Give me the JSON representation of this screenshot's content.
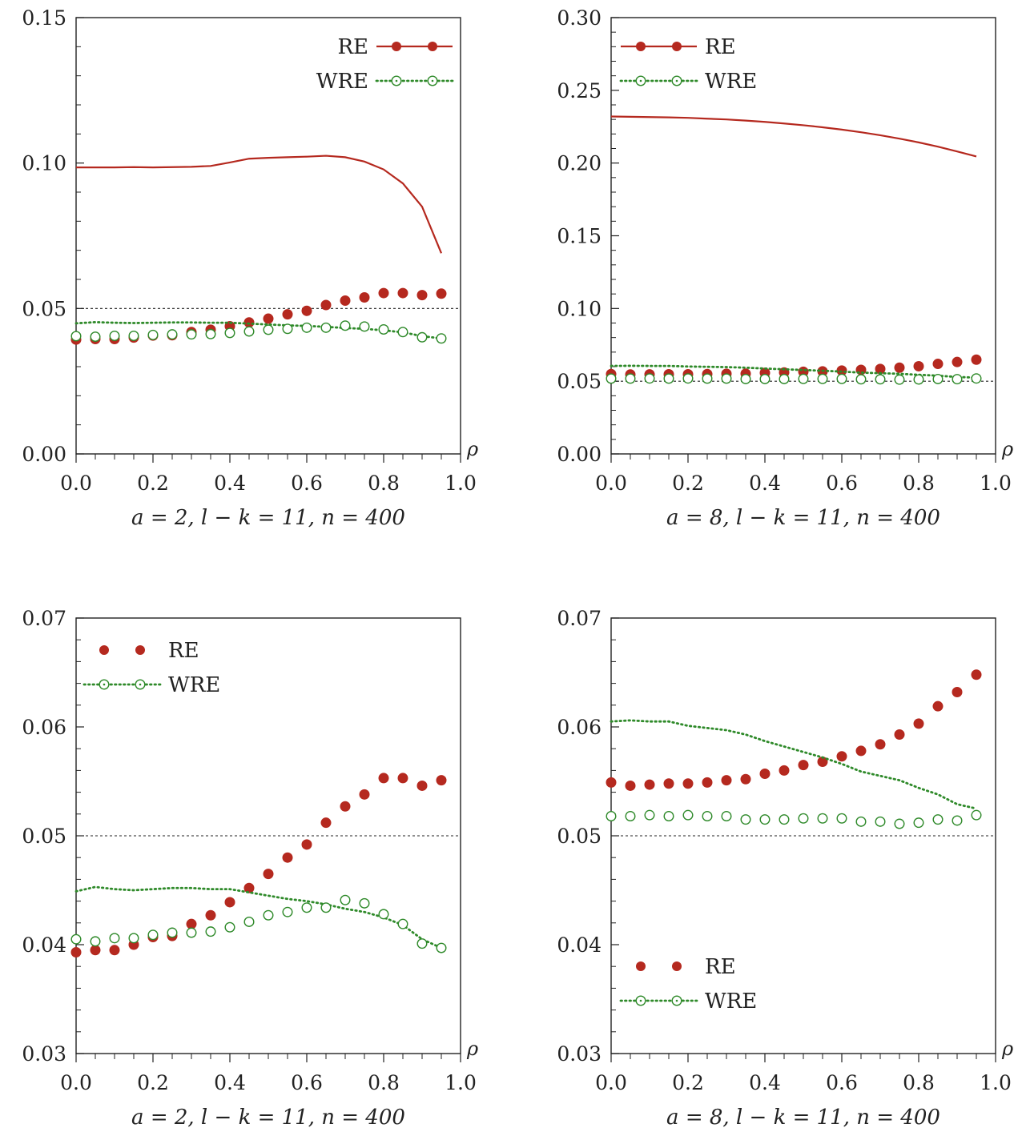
{
  "colors": {
    "re": "#b5291f",
    "wre": "#2f8a2a",
    "ref_line": "#222222",
    "axis": "#222222"
  },
  "chart_data": [
    {
      "type": "line",
      "caption": "a = 2, l − k = 11, n = 400",
      "xlabel": "ρ",
      "xlim": [
        0.0,
        1.0
      ],
      "ylim": [
        0.0,
        0.15
      ],
      "x_ticks": [
        "0.0",
        "0.2",
        "0.4",
        "0.6",
        "0.8",
        "1.0"
      ],
      "y_ticks": [
        "0.00",
        "0.05",
        "0.10",
        "0.15"
      ],
      "reference_line": 0.05,
      "legend": {
        "position": "top-right",
        "entries": [
          "RE",
          "WRE"
        ]
      },
      "x": [
        0.0,
        0.05,
        0.1,
        0.15,
        0.2,
        0.25,
        0.3,
        0.35,
        0.4,
        0.45,
        0.5,
        0.55,
        0.6,
        0.65,
        0.7,
        0.75,
        0.8,
        0.85,
        0.9,
        0.95
      ],
      "series": [
        {
          "name": "RE",
          "style": "solid-line",
          "values": [
            0.0985,
            0.0985,
            0.0985,
            0.0986,
            0.0985,
            0.0986,
            0.0987,
            0.099,
            0.1002,
            0.1015,
            0.1018,
            0.102,
            0.1022,
            0.1025,
            0.102,
            0.1005,
            0.0978,
            0.093,
            0.085,
            0.069
          ]
        },
        {
          "name": "RE",
          "style": "filled-markers",
          "values": [
            0.0393,
            0.0395,
            0.0395,
            0.04,
            0.0407,
            0.0408,
            0.0419,
            0.0427,
            0.0439,
            0.0452,
            0.0465,
            0.048,
            0.0492,
            0.0512,
            0.0527,
            0.0538,
            0.0553,
            0.0553,
            0.0546,
            0.0551
          ]
        },
        {
          "name": "WRE",
          "style": "dotted-line",
          "values": [
            0.0449,
            0.0453,
            0.0451,
            0.045,
            0.0451,
            0.0452,
            0.0452,
            0.0451,
            0.0451,
            0.0448,
            0.0445,
            0.0442,
            0.044,
            0.0437,
            0.0433,
            0.043,
            0.0425,
            0.0418,
            0.0405,
            0.0397
          ]
        },
        {
          "name": "WRE",
          "style": "open-markers",
          "values": [
            0.0405,
            0.0403,
            0.0406,
            0.0406,
            0.0409,
            0.0411,
            0.0411,
            0.0412,
            0.0416,
            0.0421,
            0.0427,
            0.043,
            0.0434,
            0.0434,
            0.0441,
            0.0438,
            0.0428,
            0.0419,
            0.0401,
            0.0397
          ]
        }
      ]
    },
    {
      "type": "line",
      "caption": "a = 8, l − k = 11, n = 400",
      "xlabel": "ρ",
      "xlim": [
        0.0,
        1.0
      ],
      "ylim": [
        0.0,
        0.3
      ],
      "x_ticks": [
        "0.0",
        "0.2",
        "0.4",
        "0.6",
        "0.8",
        "1.0"
      ],
      "y_ticks": [
        "0.00",
        "0.05",
        "0.10",
        "0.15",
        "0.20",
        "0.25",
        "0.30"
      ],
      "reference_line": 0.05,
      "legend": {
        "position": "top-left",
        "entries": [
          "RE",
          "WRE"
        ]
      },
      "x": [
        0.0,
        0.05,
        0.1,
        0.15,
        0.2,
        0.25,
        0.3,
        0.35,
        0.4,
        0.45,
        0.5,
        0.55,
        0.6,
        0.65,
        0.7,
        0.75,
        0.8,
        0.85,
        0.9,
        0.95
      ],
      "series": [
        {
          "name": "RE",
          "style": "solid-line",
          "values": [
            0.232,
            0.2318,
            0.2316,
            0.2314,
            0.2311,
            0.2305,
            0.23,
            0.2292,
            0.2283,
            0.2272,
            0.226,
            0.2246,
            0.223,
            0.2212,
            0.2191,
            0.2168,
            0.2142,
            0.2113,
            0.208,
            0.2045
          ]
        },
        {
          "name": "RE",
          "style": "filled-markers",
          "values": [
            0.0549,
            0.0546,
            0.0547,
            0.0548,
            0.0548,
            0.0549,
            0.0551,
            0.0552,
            0.0557,
            0.056,
            0.0565,
            0.0568,
            0.0573,
            0.0578,
            0.0584,
            0.0593,
            0.0603,
            0.0619,
            0.0632,
            0.0648
          ]
        },
        {
          "name": "WRE",
          "style": "dotted-line",
          "values": [
            0.0605,
            0.0606,
            0.0605,
            0.0605,
            0.0601,
            0.0599,
            0.0597,
            0.0593,
            0.0587,
            0.0582,
            0.0577,
            0.0572,
            0.0566,
            0.0559,
            0.0555,
            0.0551,
            0.0544,
            0.0538,
            0.0529,
            0.0525
          ]
        },
        {
          "name": "WRE",
          "style": "open-markers",
          "values": [
            0.0518,
            0.0518,
            0.0519,
            0.0518,
            0.0519,
            0.0518,
            0.0518,
            0.0515,
            0.0515,
            0.0515,
            0.0516,
            0.0516,
            0.0516,
            0.0513,
            0.0513,
            0.0511,
            0.0512,
            0.0515,
            0.0514,
            0.0519
          ]
        }
      ]
    },
    {
      "type": "scatter",
      "caption": "a = 2, l − k = 11, n = 400",
      "xlabel": "ρ",
      "xlim": [
        0.0,
        1.0
      ],
      "ylim": [
        0.03,
        0.07
      ],
      "x_ticks": [
        "0.0",
        "0.2",
        "0.4",
        "0.6",
        "0.8",
        "1.0"
      ],
      "y_ticks": [
        "0.03",
        "0.04",
        "0.05",
        "0.06",
        "0.07"
      ],
      "reference_line": 0.05,
      "legend": {
        "position": "top-left",
        "entries": [
          "RE",
          "WRE"
        ]
      },
      "x": [
        0.0,
        0.05,
        0.1,
        0.15,
        0.2,
        0.25,
        0.3,
        0.35,
        0.4,
        0.45,
        0.5,
        0.55,
        0.6,
        0.65,
        0.7,
        0.75,
        0.8,
        0.85,
        0.9,
        0.95
      ],
      "series": [
        {
          "name": "RE",
          "style": "filled-markers",
          "values": [
            0.0393,
            0.0395,
            0.0395,
            0.04,
            0.0407,
            0.0408,
            0.0419,
            0.0427,
            0.0439,
            0.0452,
            0.0465,
            0.048,
            0.0492,
            0.0512,
            0.0527,
            0.0538,
            0.0553,
            0.0553,
            0.0546,
            0.0551
          ]
        },
        {
          "name": "WRE",
          "style": "dotted-line",
          "values": [
            0.0449,
            0.0453,
            0.0451,
            0.045,
            0.0451,
            0.0452,
            0.0452,
            0.0451,
            0.0451,
            0.0448,
            0.0445,
            0.0442,
            0.044,
            0.0437,
            0.0433,
            0.043,
            0.0425,
            0.0418,
            0.0405,
            0.0397
          ]
        },
        {
          "name": "WRE",
          "style": "open-markers",
          "values": [
            0.0405,
            0.0403,
            0.0406,
            0.0406,
            0.0409,
            0.0411,
            0.0411,
            0.0412,
            0.0416,
            0.0421,
            0.0427,
            0.043,
            0.0434,
            0.0434,
            0.0441,
            0.0438,
            0.0428,
            0.0419,
            0.0401,
            0.0397
          ]
        }
      ]
    },
    {
      "type": "scatter",
      "caption": "a = 8, l − k = 11, n = 400",
      "xlabel": "ρ",
      "xlim": [
        0.0,
        1.0
      ],
      "ylim": [
        0.03,
        0.07
      ],
      "x_ticks": [
        "0.0",
        "0.2",
        "0.4",
        "0.6",
        "0.8",
        "1.0"
      ],
      "y_ticks": [
        "0.03",
        "0.04",
        "0.05",
        "0.06",
        "0.07"
      ],
      "reference_line": 0.05,
      "legend": {
        "position": "bottom-left",
        "entries": [
          "RE",
          "WRE"
        ]
      },
      "x": [
        0.0,
        0.05,
        0.1,
        0.15,
        0.2,
        0.25,
        0.3,
        0.35,
        0.4,
        0.45,
        0.5,
        0.55,
        0.6,
        0.65,
        0.7,
        0.75,
        0.8,
        0.85,
        0.9,
        0.95
      ],
      "series": [
        {
          "name": "RE",
          "style": "filled-markers",
          "values": [
            0.0549,
            0.0546,
            0.0547,
            0.0548,
            0.0548,
            0.0549,
            0.0551,
            0.0552,
            0.0557,
            0.056,
            0.0565,
            0.0568,
            0.0573,
            0.0578,
            0.0584,
            0.0593,
            0.0603,
            0.0619,
            0.0632,
            0.0648
          ]
        },
        {
          "name": "WRE",
          "style": "dotted-line",
          "values": [
            0.0605,
            0.0606,
            0.0605,
            0.0605,
            0.0601,
            0.0599,
            0.0597,
            0.0593,
            0.0587,
            0.0582,
            0.0577,
            0.0572,
            0.0566,
            0.0559,
            0.0555,
            0.0551,
            0.0544,
            0.0538,
            0.0529,
            0.0525
          ]
        },
        {
          "name": "WRE",
          "style": "open-markers",
          "values": [
            0.0518,
            0.0518,
            0.0519,
            0.0518,
            0.0519,
            0.0518,
            0.0518,
            0.0515,
            0.0515,
            0.0515,
            0.0516,
            0.0516,
            0.0516,
            0.0513,
            0.0513,
            0.0511,
            0.0512,
            0.0515,
            0.0514,
            0.0519
          ]
        }
      ]
    }
  ]
}
